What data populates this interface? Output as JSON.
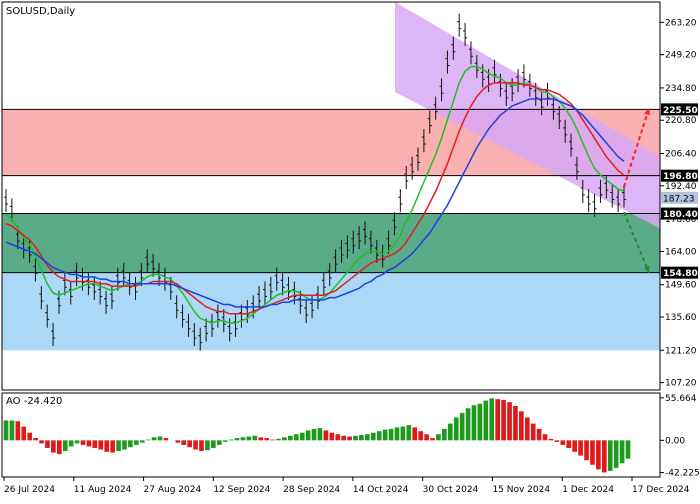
{
  "chart_data": [
    {
      "type": "line",
      "title": "SOLUSD,Daily",
      "ylim": [
        104,
        272
      ],
      "y_ticks": [
        263.2,
        249.2,
        234.8,
        220.8,
        206.4,
        192.4,
        178.0,
        164.0,
        149.6,
        135.6,
        121.2,
        107.2
      ],
      "x_tick_labels": [
        "26 Jul 2024",
        "11 Aug 2024",
        "27 Aug 2024",
        "12 Sep 2024",
        "28 Sep 2024",
        "14 Oct 2024",
        "30 Oct 2024",
        "15 Nov 2024",
        "1 Dec 2024",
        "17 Dec 2024"
      ],
      "current_price": 187.23,
      "zones": [
        {
          "name": "resistance",
          "from": 196.8,
          "to": 225.5,
          "color": "#f8b0b0"
        },
        {
          "name": "range",
          "from": 154.8,
          "to": 180.4,
          "color": "#5aac88"
        },
        {
          "name": "support",
          "from": 121.2,
          "to": 154.8,
          "color": "#acd8f8"
        }
      ],
      "levels": [
        225.5,
        196.8,
        180.4,
        154.8
      ],
      "channel": {
        "color": "#d8a8f4",
        "upper_start": [
          0.0,
          272
        ],
        "upper_end": [
          1.0,
          205
        ],
        "lower_start": [
          0.0,
          233
        ],
        "lower_end": [
          1.0,
          174
        ]
      },
      "forecast_arrows": [
        {
          "direction": "up",
          "from": 192.0,
          "to": 226.0,
          "color": "#ff2020"
        },
        {
          "direction": "down",
          "from": 181.0,
          "to": 154.8,
          "color": "#1e8a3c"
        }
      ],
      "series": [
        {
          "values": [
            186,
            182,
            170,
            166,
            164,
            156,
            144,
            136,
            128,
            142,
            150,
            146,
            154,
            152,
            150,
            148,
            146,
            142,
            144,
            152,
            154,
            150,
            148,
            154,
            160,
            158,
            154,
            152,
            148,
            140,
            136,
            132,
            128,
            126,
            130,
            132,
            136,
            134,
            130,
            132,
            136,
            138,
            140,
            144,
            146,
            148,
            152,
            150,
            148,
            146,
            142,
            138,
            140,
            144,
            150,
            154,
            160,
            164,
            166,
            168,
            170,
            172,
            168,
            164,
            162,
            168,
            176,
            186,
            196,
            200,
            204,
            212,
            220,
            226,
            234,
            246,
            252,
            262,
            258,
            250,
            244,
            240,
            238,
            242,
            236,
            232,
            234,
            238,
            240,
            236,
            232,
            228,
            232,
            226,
            222,
            216,
            210,
            200,
            190,
            186,
            184,
            190,
            192,
            188,
            186,
            188
          ]
        },
        {
          "color": "#20c020",
          "values": [
            180,
            178,
            174,
            170,
            167,
            162,
            156,
            150,
            146,
            145,
            146,
            147,
            148,
            149,
            150,
            150,
            149,
            148,
            147,
            148,
            149,
            150,
            150,
            151,
            153,
            154,
            154,
            153,
            152,
            149,
            146,
            142,
            138,
            135,
            134,
            133,
            134,
            134,
            133,
            133,
            134,
            135,
            137,
            139,
            141,
            143,
            145,
            146,
            147,
            147,
            146,
            144,
            143,
            143,
            144,
            146,
            149,
            152,
            155,
            158,
            161,
            163,
            164,
            164,
            163,
            164,
            167,
            171,
            177,
            182,
            188,
            194,
            200,
            206,
            213,
            221,
            229,
            237,
            242,
            244,
            244,
            243,
            241,
            240,
            239,
            237,
            236,
            236,
            237,
            236,
            235,
            233,
            233,
            231,
            229,
            226,
            222,
            217,
            211,
            205,
            200,
            197,
            195,
            193,
            191,
            190
          ]
        },
        {
          "color": "#e02020",
          "values": [
            176,
            175,
            173,
            171,
            169,
            166,
            162,
            158,
            155,
            153,
            152,
            151,
            151,
            151,
            151,
            151,
            150,
            150,
            149,
            149,
            149,
            149,
            149,
            150,
            150,
            151,
            151,
            151,
            151,
            150,
            148,
            146,
            144,
            142,
            140,
            139,
            138,
            138,
            137,
            137,
            137,
            137,
            138,
            139,
            140,
            141,
            142,
            143,
            144,
            145,
            145,
            145,
            145,
            145,
            145,
            146,
            147,
            149,
            151,
            153,
            155,
            157,
            159,
            160,
            161,
            162,
            163,
            165,
            168,
            172,
            176,
            180,
            185,
            190,
            196,
            202,
            209,
            216,
            222,
            227,
            231,
            234,
            236,
            237,
            237,
            237,
            237,
            237,
            236,
            236,
            235,
            234,
            234,
            233,
            232,
            230,
            228,
            225,
            221,
            217,
            213,
            209,
            205,
            202,
            199,
            197
          ]
        },
        {
          "color": "#2040e0",
          "values": [
            168,
            167,
            166,
            165,
            164,
            163,
            161,
            159,
            157,
            156,
            155,
            154,
            154,
            153,
            153,
            153,
            152,
            152,
            151,
            151,
            151,
            150,
            150,
            150,
            150,
            150,
            150,
            150,
            150,
            149,
            148,
            147,
            146,
            145,
            144,
            143,
            142,
            141,
            141,
            140,
            140,
            140,
            140,
            140,
            140,
            141,
            141,
            142,
            142,
            143,
            143,
            143,
            143,
            143,
            143,
            144,
            144,
            145,
            146,
            147,
            148,
            150,
            151,
            153,
            154,
            156,
            157,
            159,
            161,
            163,
            166,
            169,
            172,
            176,
            180,
            184,
            189,
            194,
            199,
            204,
            209,
            213,
            217,
            220,
            223,
            225,
            227,
            228,
            229,
            230,
            230,
            230,
            230,
            230,
            229,
            228,
            227,
            225,
            223,
            220,
            217,
            214,
            211,
            208,
            205,
            203
          ]
        }
      ]
    },
    {
      "type": "bar",
      "title": "AO -24.420",
      "ylim": [
        -48,
        62
      ],
      "y_ticks": [
        55.664,
        0.0,
        -42.225
      ],
      "colors": {
        "up": "#1e9a1e",
        "down": "#e01a1a"
      },
      "values": [
        26,
        26,
        25,
        18,
        10,
        3,
        -4,
        -10,
        -16,
        -18,
        -14,
        -8,
        -4,
        -6,
        -8,
        -10,
        -12,
        -15,
        -16,
        -14,
        -12,
        -9,
        -6,
        -3,
        1,
        4,
        5,
        3,
        0,
        -3,
        -6,
        -9,
        -12,
        -14,
        -13,
        -10,
        -6,
        -2,
        1,
        3,
        4,
        5,
        6,
        4,
        3,
        1,
        2,
        4,
        6,
        8,
        10,
        13,
        15,
        16,
        13,
        10,
        8,
        6,
        5,
        6,
        7,
        8,
        10,
        12,
        14,
        15,
        17,
        18,
        20,
        17,
        12,
        8,
        3,
        8,
        15,
        22,
        30,
        36,
        42,
        46,
        48,
        52,
        55,
        54,
        53,
        50,
        45,
        38,
        30,
        22,
        15,
        8,
        2,
        -2,
        -6,
        -10,
        -15,
        -20,
        -26,
        -32,
        -38,
        -42,
        -40,
        -36,
        -30,
        -24
      ]
    }
  ]
}
